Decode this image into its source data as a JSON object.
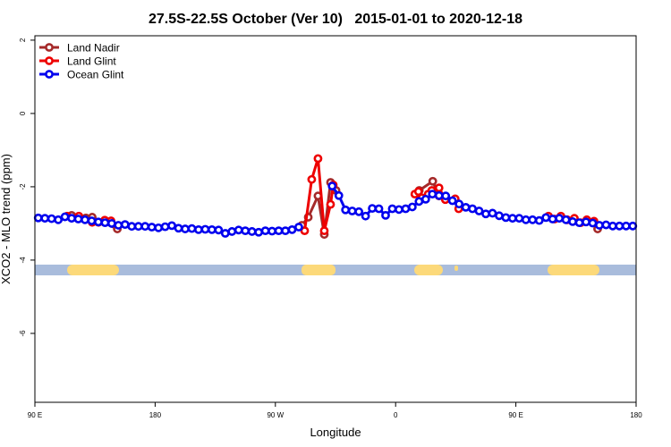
{
  "chart_data": {
    "type": "line",
    "title": "27.5S-22.5S October (Ver 10)   2015-01-01 to 2020-12-18",
    "x_label": "Longitude",
    "y_label": "XCO2 - MLO trend (ppm)",
    "xlim": [
      90,
      540
    ],
    "xticks": [
      {
        "value": 90,
        "label": "90 E"
      },
      180,
      {
        "value": 270,
        "label": "90 W"
      },
      {
        "value": 360,
        "label": "0"
      },
      {
        "value": 450,
        "label": "90 E"
      },
      {
        "value": 540,
        "label": "180"
      }
    ],
    "ylim": [
      -7.88,
      2.12
    ],
    "yticks": [
      2,
      0,
      -2,
      -4,
      -6
    ],
    "legend": "top-left",
    "series": [
      {
        "name": "Land Nadir",
        "color": "#a52a2a",
        "x": [
          117.5,
          128.2,
          132.9,
          151.7,
          null,
          289.9,
          294.6,
          301.9,
          306.6,
          311.3,
          315.4,
          null,
          377.7,
          387.8,
          392.5,
          null,
          511.2
        ],
        "values": [
          -2.78,
          -2.85,
          -2.83,
          -3.15,
          null,
          -3.05,
          -2.83,
          -2.25,
          -3.3,
          -1.88,
          -2.1,
          null,
          -2.1,
          -1.85,
          -2.25,
          null,
          -3.15
        ]
      },
      {
        "name": "Land Glint",
        "color": "#ee0000",
        "x": [
          114.1,
          122.9,
          132.9,
          137.6,
          142.3,
          147.0,
          null,
          291.9,
          297.2,
          301.9,
          306.6,
          311.3,
          313.3,
          null,
          374.4,
          377.1,
          379.7,
          384.4,
          387.1,
          392.5,
          397.2,
          null,
          404.6,
          407.2,
          null,
          474.4,
          479.0,
          483.7,
          488.4,
          493.8,
          498.5,
          503.1,
          508.5
        ],
        "values": [
          -2.8,
          -2.8,
          -2.97,
          -2.97,
          -2.91,
          -2.93,
          null,
          -3.2,
          -1.8,
          -1.23,
          -3.2,
          -2.48,
          -1.95,
          null,
          -2.2,
          -2.13,
          -2.3,
          -2.2,
          -2.1,
          -2.03,
          -2.35,
          null,
          -2.33,
          -2.6,
          null,
          -2.8,
          -2.88,
          -2.8,
          -2.9,
          -2.86,
          -2.98,
          -2.9,
          -2.94
        ]
      },
      {
        "name": "Ocean Glint",
        "color": "#0000ee",
        "x": [
          92.5,
          97.5,
          102.5,
          107.5,
          112.5,
          117.5,
          122.5,
          127.5,
          132.5,
          137.5,
          142.5,
          147.5,
          152.5,
          157.5,
          162.5,
          167.5,
          172.5,
          177.5,
          182.5,
          187.5,
          192.5,
          197.5,
          202.5,
          207.5,
          212.5,
          217.5,
          222.5,
          227.5,
          232.5,
          237.5,
          242.5,
          247.5,
          252.5,
          257.5,
          262.5,
          267.5,
          272.5,
          277.5,
          282.5,
          287.5,
          292.5,
          297.5,
          302.5,
          307.5,
          312.5,
          317.5,
          322.5,
          327.5,
          332.5,
          337.5,
          342.5,
          347.5,
          352.5,
          357.5,
          362.5,
          367.5,
          372.5,
          377.5,
          382.5,
          387.5,
          392.5,
          397.5,
          402.5,
          407.5,
          412.5,
          417.5,
          422.5,
          427.5,
          432.5,
          437.5,
          442.5,
          447.5,
          452.5,
          457.5,
          462.5,
          467.5,
          472.5,
          477.5,
          482.5,
          487.5,
          492.5,
          497.5,
          502.5,
          507.5,
          512.5,
          517.5,
          522.5,
          527.5,
          532.5,
          537.5
        ],
        "values": [
          -2.85,
          -2.86,
          -2.87,
          -2.9,
          -2.82,
          -2.86,
          -2.88,
          -2.9,
          -2.93,
          -2.96,
          -2.98,
          -3.0,
          -3.05,
          -3.03,
          -3.08,
          -3.08,
          -3.08,
          -3.1,
          -3.12,
          -3.09,
          -3.06,
          -3.13,
          -3.15,
          -3.14,
          -3.17,
          -3.16,
          -3.17,
          -3.18,
          -3.27,
          -3.22,
          -3.18,
          -3.2,
          -3.22,
          -3.24,
          -3.2,
          -3.21,
          -3.2,
          -3.2,
          -3.17,
          -3.1,
          null,
          null,
          null,
          null,
          -1.98,
          -2.24,
          -2.63,
          -2.66,
          -2.68,
          -2.8,
          -2.59,
          -2.6,
          -2.78,
          -2.6,
          -2.62,
          -2.6,
          -2.55,
          -2.4,
          -2.34,
          -2.2,
          -2.24,
          -2.25,
          -2.38,
          -2.47,
          -2.56,
          -2.6,
          -2.66,
          -2.74,
          -2.72,
          -2.79,
          -2.84,
          -2.86,
          -2.86,
          -2.9,
          -2.9,
          -2.92,
          -2.84,
          -2.88,
          -2.86,
          -2.9,
          -2.95,
          -2.98,
          -2.96,
          -2.99,
          -3.05,
          -3.04,
          -3.07,
          -3.07,
          -3.07,
          -3.07
        ]
      }
    ]
  }
}
